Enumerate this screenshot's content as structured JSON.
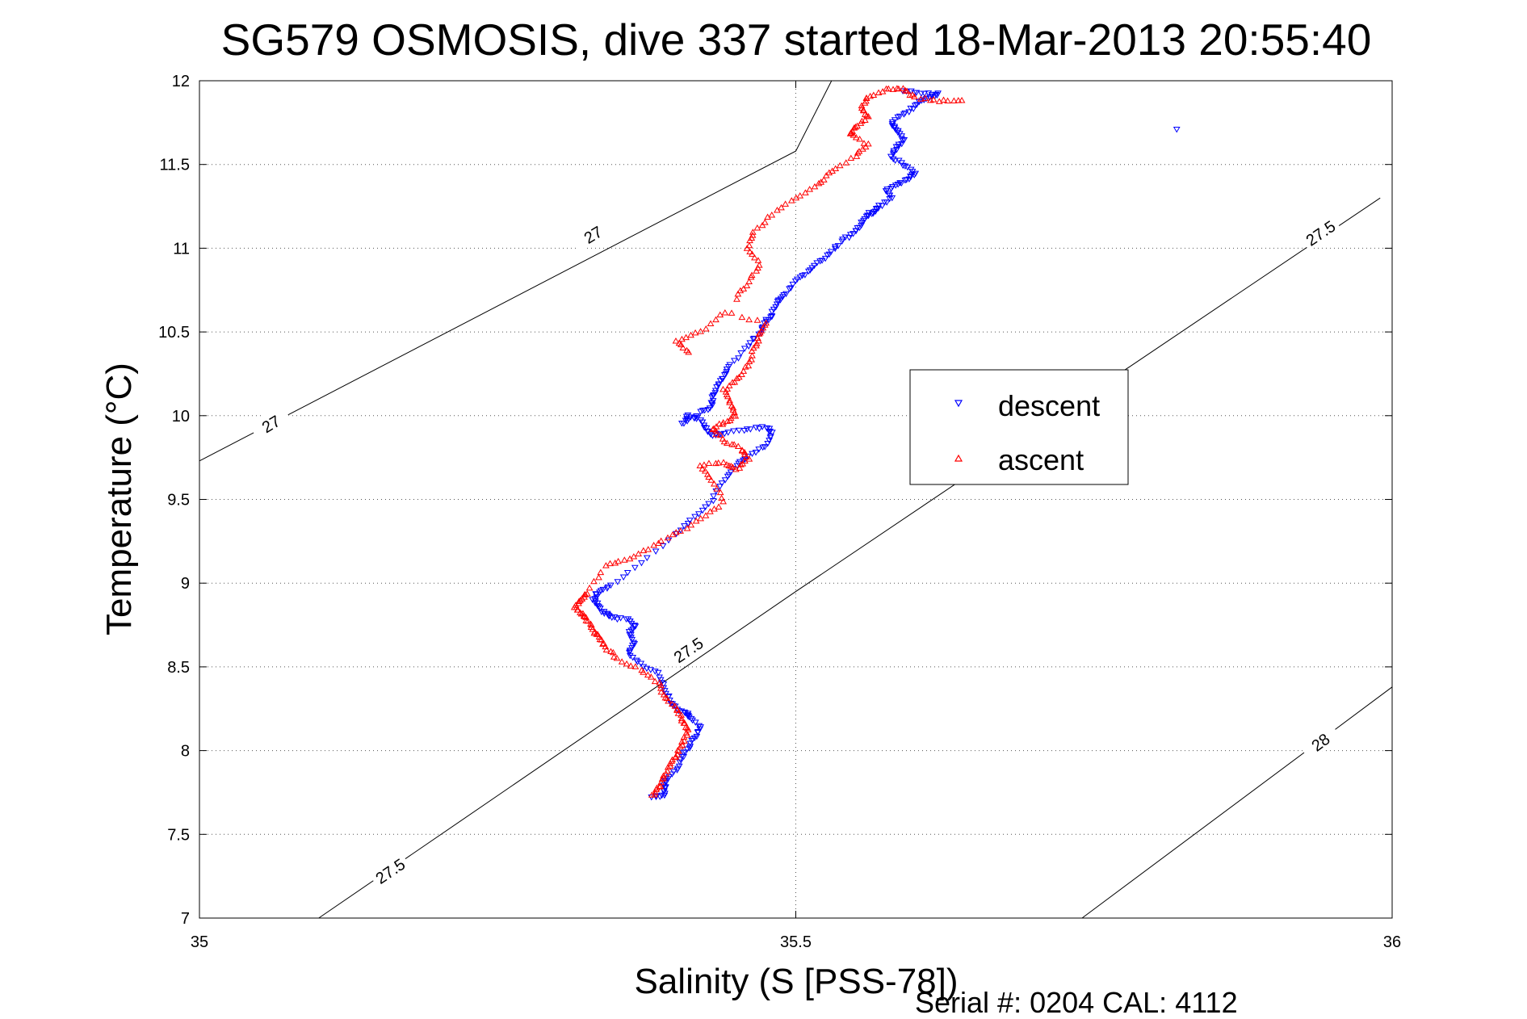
{
  "chart_data": {
    "type": "scatter",
    "title": "SG579 OSMOSIS, dive 337 started 18-Mar-2013 20:55:40",
    "xlabel": "Salinity (S [PSS-78])",
    "ylabel": "Temperature (°C)",
    "xlim": [
      35,
      36
    ],
    "ylim": [
      7,
      12
    ],
    "xticks": [
      35,
      35.5,
      36
    ],
    "xtick_labels": [
      "35",
      "35.5",
      "36"
    ],
    "yticks": [
      7,
      7.5,
      8,
      8.5,
      9,
      9.5,
      10,
      10.5,
      11,
      11.5,
      12
    ],
    "ytick_labels": [
      "7",
      "7.5",
      "8",
      "8.5",
      "9",
      "9.5",
      "10",
      "10.5",
      "11",
      "11.5",
      "12"
    ],
    "grid": true,
    "legend_position": "center-right",
    "footer": "Serial #: 0204  CAL: 4112",
    "contours": [
      {
        "level_label": "27",
        "points": [
          [
            35.0,
            9.73
          ],
          [
            35.5,
            11.58
          ],
          [
            35.53,
            12.0
          ]
        ],
        "labels": [
          {
            "x": 35.06,
            "y": 9.95,
            "text": "27"
          },
          {
            "x": 35.33,
            "y": 11.08,
            "text": "27"
          }
        ]
      },
      {
        "level_label": "27.5",
        "points": [
          [
            35.1,
            7.0
          ],
          [
            35.5,
            8.95
          ],
          [
            35.99,
            11.3
          ]
        ],
        "labels": [
          {
            "x": 35.16,
            "y": 7.28,
            "text": "27.5"
          },
          {
            "x": 35.41,
            "y": 8.6,
            "text": "27.5"
          },
          {
            "x": 35.94,
            "y": 11.09,
            "text": "27.5"
          }
        ]
      },
      {
        "level_label": "28",
        "points": [
          [
            35.74,
            7.0
          ],
          [
            36.0,
            8.38
          ]
        ],
        "labels": [
          {
            "x": 35.94,
            "y": 8.05,
            "text": "28"
          }
        ]
      }
    ],
    "series": [
      {
        "name": "descent",
        "color": "#0000ff",
        "marker": "triangle-down",
        "points": [
          [
            35.38,
            7.72
          ],
          [
            35.39,
            7.74
          ],
          [
            35.39,
            7.78
          ],
          [
            35.39,
            7.82
          ],
          [
            35.4,
            7.88
          ],
          [
            35.405,
            7.96
          ],
          [
            35.41,
            8.02
          ],
          [
            35.415,
            8.08
          ],
          [
            35.42,
            8.14
          ],
          [
            35.41,
            8.2
          ],
          [
            35.41,
            8.22
          ],
          [
            35.4,
            8.25
          ],
          [
            35.395,
            8.3
          ],
          [
            35.39,
            8.38
          ],
          [
            35.385,
            8.46
          ],
          [
            35.37,
            8.52
          ],
          [
            35.36,
            8.58
          ],
          [
            35.365,
            8.64
          ],
          [
            35.36,
            8.7
          ],
          [
            35.365,
            8.75
          ],
          [
            35.36,
            8.78
          ],
          [
            35.345,
            8.8
          ],
          [
            35.34,
            8.82
          ],
          [
            35.335,
            8.86
          ],
          [
            35.33,
            8.9
          ],
          [
            35.335,
            8.95
          ],
          [
            35.345,
            8.99
          ],
          [
            35.37,
            9.12
          ],
          [
            35.4,
            9.3
          ],
          [
            35.415,
            9.4
          ],
          [
            35.43,
            9.5
          ],
          [
            35.44,
            9.62
          ],
          [
            35.45,
            9.7
          ],
          [
            35.46,
            9.76
          ],
          [
            35.475,
            9.82
          ],
          [
            35.48,
            9.9
          ],
          [
            35.475,
            9.93
          ],
          [
            35.46,
            9.92
          ],
          [
            35.44,
            9.9
          ],
          [
            35.43,
            9.88
          ],
          [
            35.425,
            9.92
          ],
          [
            35.42,
            9.98
          ],
          [
            35.41,
            10.0
          ],
          [
            35.405,
            9.95
          ],
          [
            35.42,
            10.02
          ],
          [
            35.43,
            10.06
          ],
          [
            35.43,
            10.12
          ],
          [
            35.435,
            10.18
          ],
          [
            35.44,
            10.24
          ],
          [
            35.445,
            10.3
          ],
          [
            35.46,
            10.42
          ],
          [
            35.47,
            10.5
          ],
          [
            35.475,
            10.56
          ],
          [
            35.48,
            10.6
          ],
          [
            35.485,
            10.68
          ],
          [
            35.49,
            10.72
          ],
          [
            35.5,
            10.8
          ],
          [
            35.51,
            10.86
          ],
          [
            35.52,
            10.92
          ],
          [
            35.53,
            10.98
          ],
          [
            35.54,
            11.05
          ],
          [
            35.55,
            11.1
          ],
          [
            35.555,
            11.15
          ],
          [
            35.56,
            11.2
          ],
          [
            35.565,
            11.22
          ],
          [
            35.57,
            11.25
          ],
          [
            35.58,
            11.3
          ],
          [
            35.575,
            11.35
          ],
          [
            35.585,
            11.38
          ],
          [
            35.595,
            11.42
          ],
          [
            35.6,
            11.45
          ],
          [
            35.59,
            11.5
          ],
          [
            35.58,
            11.55
          ],
          [
            35.585,
            11.6
          ],
          [
            35.59,
            11.65
          ],
          [
            35.585,
            11.7
          ],
          [
            35.58,
            11.75
          ],
          [
            35.59,
            11.8
          ],
          [
            35.6,
            11.85
          ],
          [
            35.61,
            11.9
          ],
          [
            35.62,
            11.92
          ],
          [
            35.605,
            11.93
          ],
          [
            35.59,
            11.94
          ],
          [
            35.82,
            11.71
          ]
        ]
      },
      {
        "name": "ascent",
        "color": "#ff0000",
        "marker": "triangle-up",
        "points": [
          [
            35.38,
            7.73
          ],
          [
            35.385,
            7.78
          ],
          [
            35.39,
            7.85
          ],
          [
            35.395,
            7.92
          ],
          [
            35.4,
            7.98
          ],
          [
            35.405,
            8.05
          ],
          [
            35.41,
            8.12
          ],
          [
            35.405,
            8.18
          ],
          [
            35.4,
            8.25
          ],
          [
            35.39,
            8.32
          ],
          [
            35.385,
            8.4
          ],
          [
            35.37,
            8.48
          ],
          [
            35.35,
            8.55
          ],
          [
            35.34,
            8.62
          ],
          [
            35.335,
            8.68
          ],
          [
            35.33,
            8.72
          ],
          [
            35.325,
            8.78
          ],
          [
            35.32,
            8.82
          ],
          [
            35.315,
            8.86
          ],
          [
            35.32,
            8.9
          ],
          [
            35.325,
            8.94
          ],
          [
            35.34,
            9.1
          ],
          [
            35.36,
            9.15
          ],
          [
            35.38,
            9.22
          ],
          [
            35.4,
            9.3
          ],
          [
            35.42,
            9.38
          ],
          [
            35.44,
            9.48
          ],
          [
            35.43,
            9.62
          ],
          [
            35.42,
            9.7
          ],
          [
            35.44,
            9.72
          ],
          [
            35.45,
            9.68
          ],
          [
            35.46,
            9.74
          ],
          [
            35.455,
            9.8
          ],
          [
            35.44,
            9.85
          ],
          [
            35.43,
            9.92
          ],
          [
            35.44,
            9.96
          ],
          [
            35.45,
            10.0
          ],
          [
            35.445,
            10.08
          ],
          [
            35.44,
            10.15
          ],
          [
            35.45,
            10.22
          ],
          [
            35.46,
            10.3
          ],
          [
            35.465,
            10.4
          ],
          [
            35.47,
            10.48
          ],
          [
            35.475,
            10.55
          ],
          [
            35.44,
            10.62
          ],
          [
            35.42,
            10.5
          ],
          [
            35.4,
            10.45
          ],
          [
            35.41,
            10.38
          ],
          [
            35.45,
            10.7
          ],
          [
            35.46,
            10.8
          ],
          [
            35.47,
            10.9
          ],
          [
            35.46,
            11.0
          ],
          [
            35.465,
            11.1
          ],
          [
            35.48,
            11.2
          ],
          [
            35.5,
            11.3
          ],
          [
            35.52,
            11.38
          ],
          [
            35.53,
            11.46
          ],
          [
            35.55,
            11.55
          ],
          [
            35.56,
            11.62
          ],
          [
            35.545,
            11.68
          ],
          [
            35.55,
            11.72
          ],
          [
            35.56,
            11.78
          ],
          [
            35.555,
            11.84
          ],
          [
            35.56,
            11.9
          ],
          [
            35.575,
            11.95
          ],
          [
            35.59,
            11.95
          ],
          [
            35.6,
            11.9
          ],
          [
            35.62,
            11.88
          ],
          [
            35.64,
            11.88
          ]
        ]
      }
    ]
  }
}
